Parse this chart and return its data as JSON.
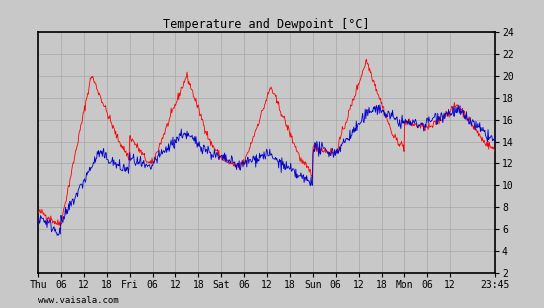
{
  "title": "Temperature and Dewpoint [°C]",
  "ylim": [
    2,
    24
  ],
  "yticks": [
    2,
    4,
    6,
    8,
    10,
    12,
    14,
    16,
    18,
    20,
    22,
    24
  ],
  "bg_color": "#c8c8c8",
  "plot_bg_color": "#c8c8c8",
  "outer_bg": "#c8c8c8",
  "grid_color": "#a8a8a8",
  "temp_color": "#ff0000",
  "dew_color": "#0000cc",
  "watermark": "www.vaisala.com",
  "x_tick_labels": [
    "Thu",
    "06",
    "12",
    "18",
    "Fri",
    "06",
    "12",
    "18",
    "Sat",
    "06",
    "12",
    "18",
    "Sun",
    "06",
    "12",
    "18",
    "Mon",
    "06",
    "12",
    "23:45"
  ],
  "x_tick_positions": [
    0,
    6,
    12,
    18,
    24,
    30,
    36,
    42,
    48,
    54,
    60,
    66,
    72,
    78,
    84,
    90,
    96,
    102,
    108,
    119.75
  ],
  "total_hours": 119.75
}
